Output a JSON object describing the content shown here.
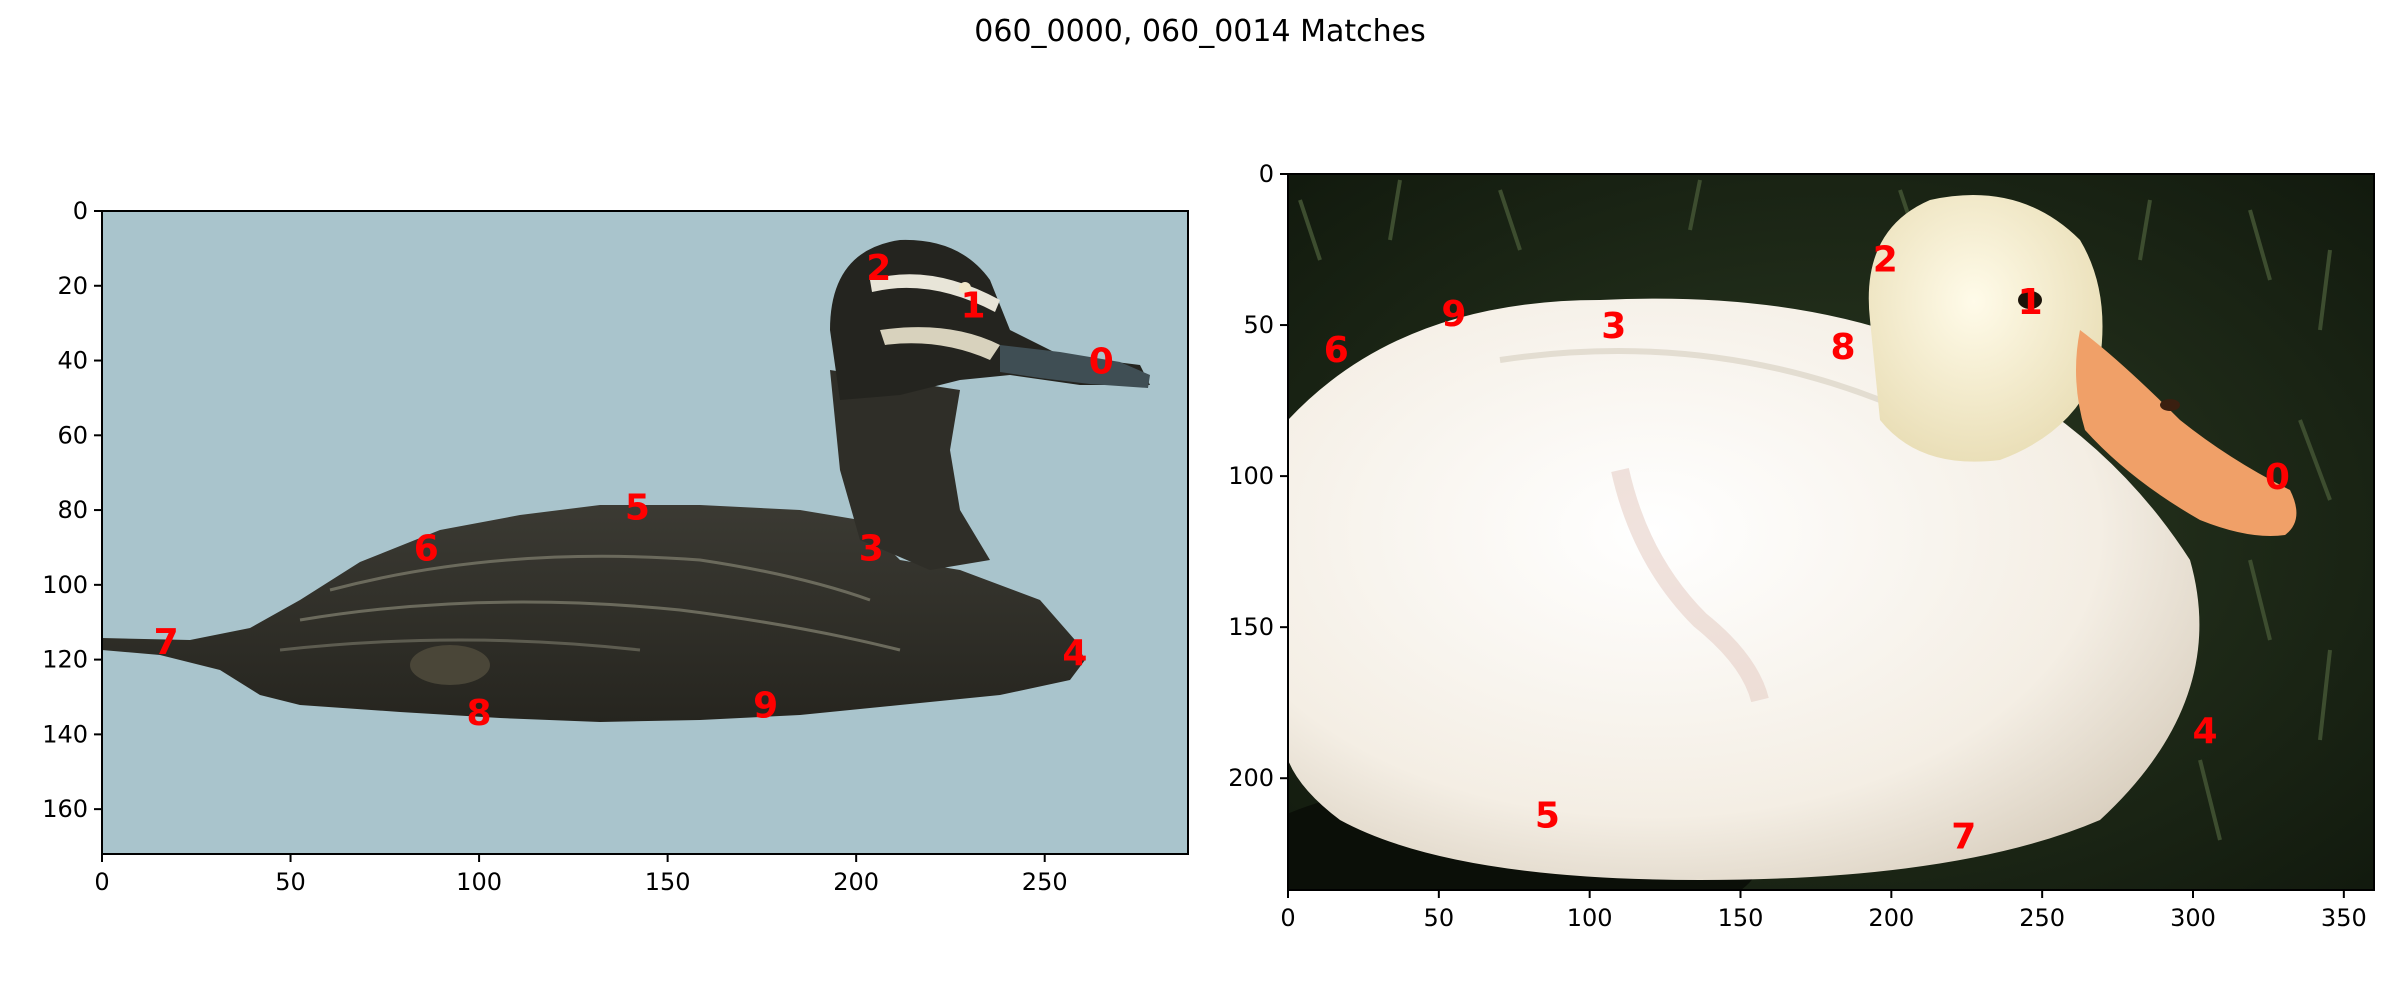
{
  "title": "060_0000, 060_0014 Matches",
  "colors": {
    "keypoint": "#ff0000",
    "left_bg": "#a9c4cc",
    "right_bg": "#1e2a17"
  },
  "panels": [
    {
      "image": "decoy duck (Pacific black duck) on light blue background",
      "x_ticks": [
        0,
        50,
        100,
        150,
        200,
        250
      ],
      "y_ticks": [
        0,
        20,
        40,
        60,
        80,
        100,
        120,
        140,
        160
      ],
      "xlim": [
        0,
        288
      ],
      "ylim": [
        172,
        0
      ],
      "keypoints": [
        {
          "id": "0",
          "x": 265,
          "y": 40
        },
        {
          "id": "1",
          "x": 231,
          "y": 25
        },
        {
          "id": "2",
          "x": 206,
          "y": 15
        },
        {
          "id": "3",
          "x": 204,
          "y": 90
        },
        {
          "id": "4",
          "x": 258,
          "y": 118
        },
        {
          "id": "5",
          "x": 142,
          "y": 79
        },
        {
          "id": "6",
          "x": 86,
          "y": 90
        },
        {
          "id": "7",
          "x": 17,
          "y": 115
        },
        {
          "id": "8",
          "x": 100,
          "y": 134
        },
        {
          "id": "9",
          "x": 176,
          "y": 132
        }
      ]
    },
    {
      "image": "white duckling with orange bill on dark grass",
      "x_ticks": [
        0,
        50,
        100,
        150,
        200,
        250,
        300,
        350
      ],
      "y_ticks": [
        0,
        50,
        100,
        150,
        200
      ],
      "xlim": [
        0,
        360
      ],
      "ylim": [
        237,
        0
      ],
      "keypoints": [
        {
          "id": "0",
          "x": 328,
          "y": 100
        },
        {
          "id": "1",
          "x": 246,
          "y": 42
        },
        {
          "id": "2",
          "x": 198,
          "y": 28
        },
        {
          "id": "3",
          "x": 108,
          "y": 50
        },
        {
          "id": "4",
          "x": 304,
          "y": 184
        },
        {
          "id": "5",
          "x": 86,
          "y": 212
        },
        {
          "id": "6",
          "x": 16,
          "y": 58
        },
        {
          "id": "7",
          "x": 224,
          "y": 219
        },
        {
          "id": "8",
          "x": 184,
          "y": 57
        },
        {
          "id": "9",
          "x": 55,
          "y": 46
        }
      ]
    }
  ]
}
